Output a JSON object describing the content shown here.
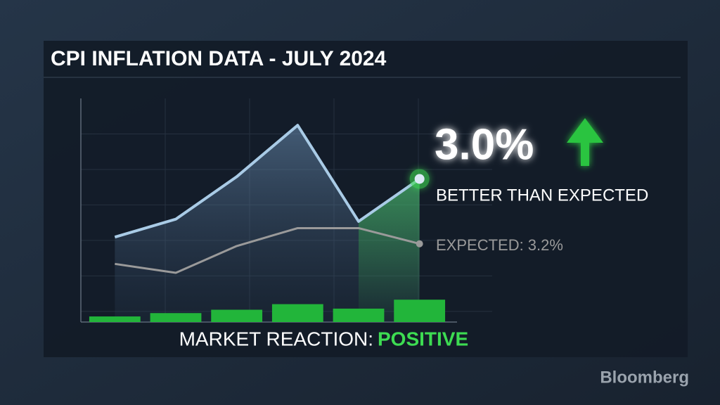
{
  "chart_data": {
    "type": "line",
    "title": "CPI INFLATION DATA - JULY 2024",
    "categories": [
      null,
      null,
      null,
      null,
      null,
      null
    ],
    "ylim": [
      0,
      10
    ],
    "grid": true,
    "series": [
      {
        "type": "line",
        "color": "#a9cbe6",
        "values": [
          3.8,
          4.6,
          6.5,
          8.8,
          4.5,
          6.4
        ]
      },
      {
        "type": "line",
        "color": "#9a9a9a",
        "values": [
          2.6,
          2.2,
          3.4,
          4.2,
          4.2,
          3.5
        ]
      },
      {
        "type": "bar",
        "color": "#22b53a",
        "values": [
          0.25,
          0.4,
          0.55,
          0.8,
          0.6,
          1.0
        ]
      }
    ],
    "highlight_color": "#3ddc52",
    "headline": "3.0%",
    "headline_note": "BETTER THAN EXPECTED",
    "expected_note": "EXPECTED: 3.2%",
    "reaction_label": "MARKET REACTION:",
    "reaction_value": "POSITIVE"
  },
  "brand": "Bloomberg"
}
